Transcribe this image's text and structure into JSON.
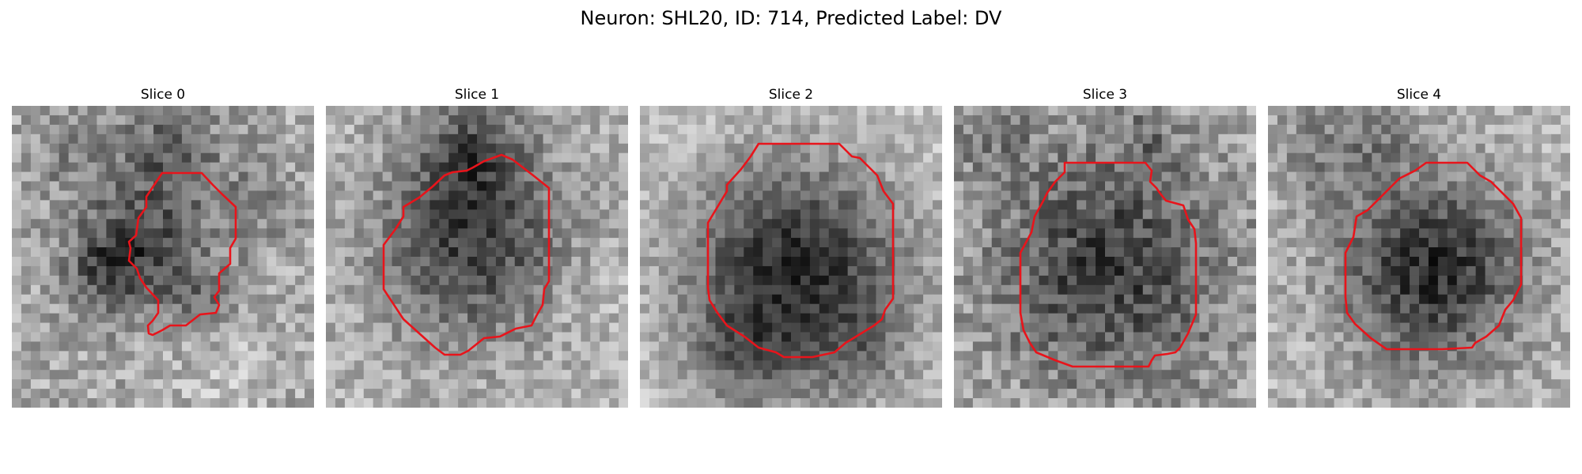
{
  "figure": {
    "title": "Neuron: SHL20, ID: 714, Predicted Label: DV"
  },
  "colors": {
    "background": "#ffffff",
    "contour": "#e8141b",
    "pixel_map": "grayscale"
  },
  "panels": [
    {
      "title": "Slice 0"
    },
    {
      "title": "Slice 1"
    },
    {
      "title": "Slice 2"
    },
    {
      "title": "Slice 3"
    },
    {
      "title": "Slice 4"
    }
  ]
}
